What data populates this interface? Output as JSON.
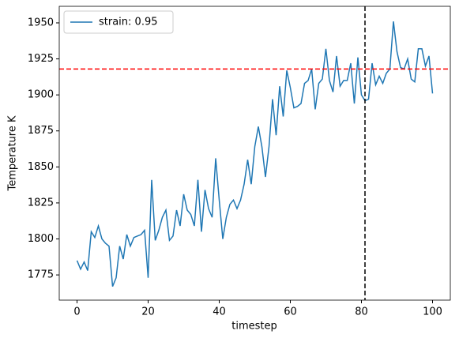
{
  "chart_data": {
    "type": "line",
    "x_label": "timestep",
    "y_label": "Temperature K",
    "x": [
      0,
      1,
      2,
      3,
      4,
      5,
      6,
      7,
      8,
      9,
      10,
      11,
      12,
      13,
      14,
      15,
      16,
      17,
      18,
      19,
      20,
      21,
      22,
      23,
      24,
      25,
      26,
      27,
      28,
      29,
      30,
      31,
      32,
      33,
      34,
      35,
      36,
      37,
      38,
      39,
      40,
      41,
      42,
      43,
      44,
      45,
      46,
      47,
      48,
      49,
      50,
      51,
      52,
      53,
      54,
      55,
      56,
      57,
      58,
      59,
      60,
      61,
      62,
      63,
      64,
      65,
      66,
      67,
      68,
      69,
      70,
      71,
      72,
      73,
      74,
      75,
      76,
      77,
      78,
      79,
      80,
      81,
      82,
      83,
      84,
      85,
      86,
      87,
      88,
      89,
      90,
      91,
      92,
      93,
      94,
      95,
      96,
      97,
      98,
      99,
      100
    ],
    "series": [
      {
        "name": "strain: 0.95",
        "color": "#1f77b4",
        "values": [
          1785,
          1779,
          1784,
          1778,
          1805,
          1801,
          1809,
          1800,
          1797,
          1795,
          1767,
          1773,
          1795,
          1786,
          1803,
          1795,
          1801,
          1802,
          1803,
          1806,
          1773,
          1841,
          1799,
          1806,
          1815,
          1820,
          1799,
          1802,
          1820,
          1809,
          1831,
          1820,
          1817,
          1809,
          1841,
          1805,
          1834,
          1821,
          1815,
          1856,
          1827,
          1800,
          1815,
          1824,
          1827,
          1821,
          1827,
          1838,
          1855,
          1838,
          1864,
          1878,
          1864,
          1843,
          1864,
          1897,
          1872,
          1906,
          1885,
          1917,
          1905,
          1891,
          1892,
          1894,
          1908,
          1910,
          1918,
          1890,
          1908,
          1911,
          1932,
          1910,
          1902,
          1927,
          1906,
          1910,
          1910,
          1922,
          1894,
          1926,
          1900,
          1896,
          1897,
          1922,
          1907,
          1913,
          1908,
          1915,
          1918,
          1951,
          1930,
          1919,
          1918,
          1925,
          1911,
          1909,
          1932,
          1932,
          1920,
          1927,
          1901
        ]
      }
    ],
    "hlines": [
      {
        "value": 1918,
        "color": "#ff0000"
      }
    ],
    "vlines": [
      {
        "value": 81,
        "color": "#000000"
      }
    ],
    "xlim": [
      -5,
      105
    ],
    "xticks": [
      0,
      20,
      40,
      60,
      80,
      100
    ],
    "ylim": [
      1757.5,
      1961.5
    ],
    "yticks": [
      1775,
      1800,
      1825,
      1850,
      1875,
      1900,
      1925,
      1950
    ],
    "legend": "upper left"
  }
}
